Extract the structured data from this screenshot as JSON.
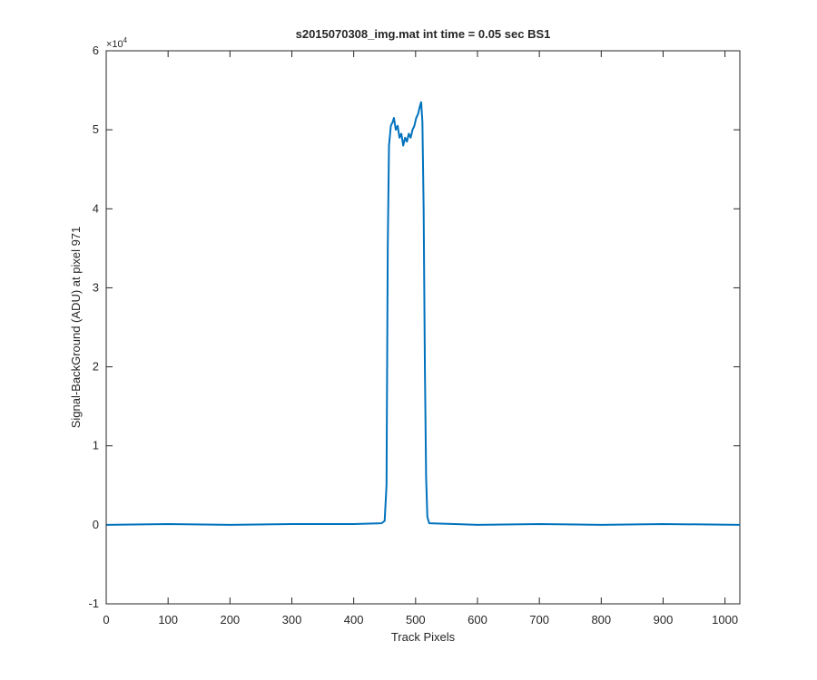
{
  "chart_data": {
    "type": "line",
    "title": "s2015070308_img.mat int time = 0.05 sec   BS1",
    "x_label": "Track Pixels",
    "y_label": "Signal-BackGround (ADU) at pixel 971",
    "y_multiplier": "×10",
    "y_multiplier_exponent": "4",
    "x": [
      1,
      100,
      200,
      300,
      400,
      445,
      450,
      453,
      455,
      457,
      460,
      463,
      465,
      468,
      471,
      474,
      477,
      480,
      483,
      486,
      489,
      492,
      495,
      498,
      501,
      504,
      507,
      509,
      511,
      513,
      515,
      517,
      519,
      522,
      600,
      700,
      800,
      900,
      1024
    ],
    "series": [
      {
        "color": "#0072bd",
        "values": [
          0,
          0.01,
          0,
          0.01,
          0.01,
          0.02,
          0.05,
          0.5,
          3.5,
          4.8,
          5.05,
          5.1,
          5.15,
          5.0,
          5.05,
          4.9,
          4.95,
          4.8,
          4.9,
          4.85,
          4.95,
          4.9,
          5.0,
          5.05,
          5.15,
          5.2,
          5.3,
          5.35,
          5.1,
          4.0,
          2.0,
          0.6,
          0.1,
          0.02,
          0,
          0.01,
          0,
          0.01,
          0
        ]
      }
    ],
    "xlim": [
      0,
      1024
    ],
    "xticks": [
      0,
      100,
      200,
      300,
      400,
      500,
      600,
      700,
      800,
      900,
      1000
    ],
    "ylim": [
      -1,
      6
    ],
    "yticks": [
      -1,
      0,
      1,
      2,
      3,
      4,
      5,
      6
    ],
    "grid": false
  }
}
